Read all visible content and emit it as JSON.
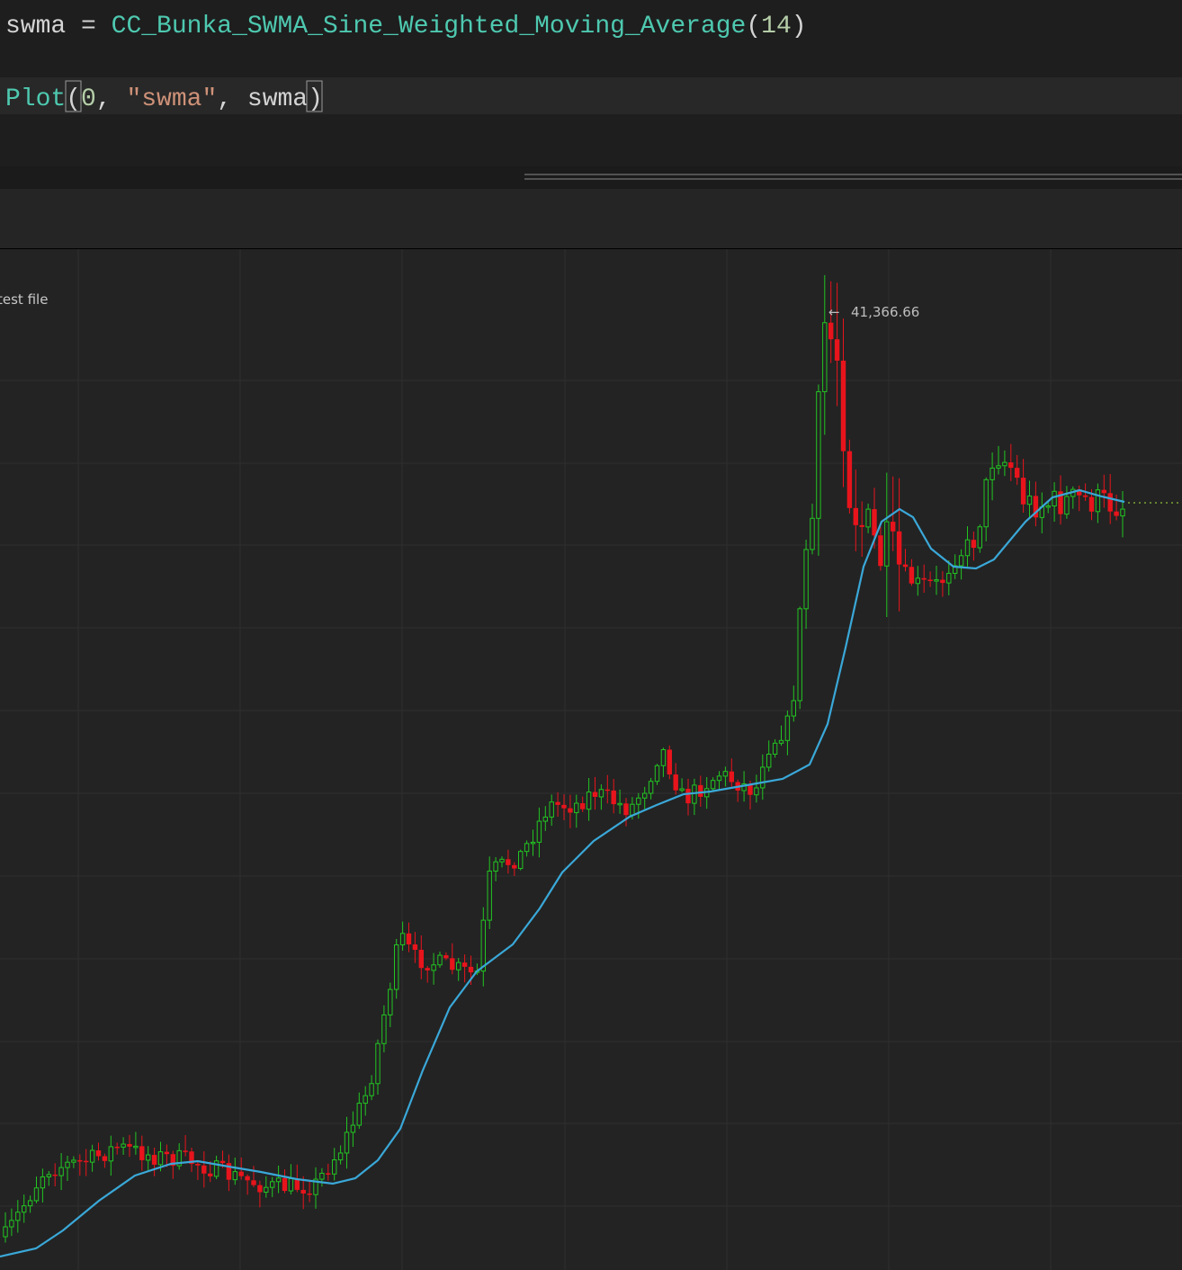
{
  "editor": {
    "lines": [
      {
        "tokens": [
          {
            "text": "swma",
            "color": "#d4d4d4"
          },
          {
            "text": " = ",
            "color": "#d4d4d4"
          },
          {
            "text": "CC_Bunka_SWMA_Sine_Weighted_Moving_Average",
            "color": "#4ec9b0"
          },
          {
            "text": "(",
            "color": "#d4d4d4"
          },
          {
            "text": "14",
            "color": "#b5cea8"
          },
          {
            "text": ")",
            "color": "#d4d4d4"
          }
        ]
      },
      {
        "tokens": [
          {
            "text": "Plot",
            "color": "#4ec9b0"
          },
          {
            "text": "(",
            "color": "#d4d4d4"
          },
          {
            "text": "0",
            "color": "#b5cea8"
          },
          {
            "text": ", ",
            "color": "#d4d4d4"
          },
          {
            "text": "\"swma\"",
            "color": "#ce9178"
          },
          {
            "text": ", ",
            "color": "#d4d4d4"
          },
          {
            "text": "swma",
            "color": "#d4d4d4"
          },
          {
            "text": ")",
            "color": "#d4d4d4"
          }
        ]
      }
    ]
  },
  "chart": {
    "label": "test file",
    "peak_label": "41,366.66"
  }
}
